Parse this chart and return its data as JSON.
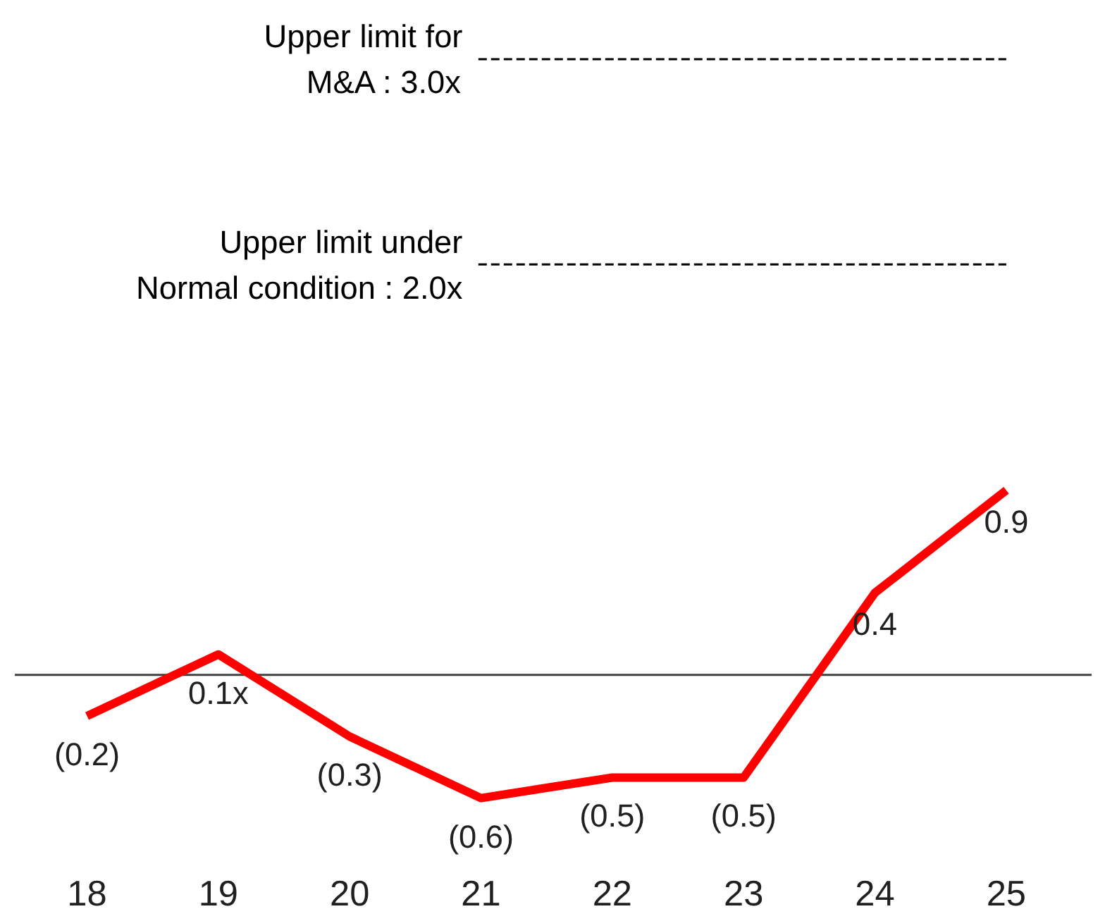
{
  "chart_data": {
    "type": "line",
    "categories": [
      "18",
      "19",
      "20",
      "21",
      "22",
      "23",
      "24",
      "25"
    ],
    "series": [
      {
        "color": "#ff0000",
        "values": [
          -0.2,
          0.1,
          -0.3,
          -0.6,
          -0.5,
          -0.5,
          0.4,
          0.9
        ],
        "value_labels": [
          "(0.2)",
          "0.1x",
          "(0.3)",
          "(0.6)",
          "(0.5)",
          "(0.5)",
          "0.4",
          "0.9"
        ]
      }
    ],
    "grid": false,
    "marker": "none",
    "line_style": "solid",
    "tick_labels": "x",
    "ref_lines": [
      {
        "axis": "y",
        "value": 3.0,
        "label": "Upper limit for\nM&A : 3.0x",
        "color": "#000000",
        "line_style": "dashed"
      },
      {
        "axis": "y",
        "value": 2.0,
        "label": "Upper limit under\nNormal condition : 2.0x",
        "color": "#000000",
        "line_style": "dashed"
      },
      {
        "axis": "y",
        "value": 0,
        "label": null,
        "color": "#404040",
        "line_style": "solid"
      }
    ]
  }
}
